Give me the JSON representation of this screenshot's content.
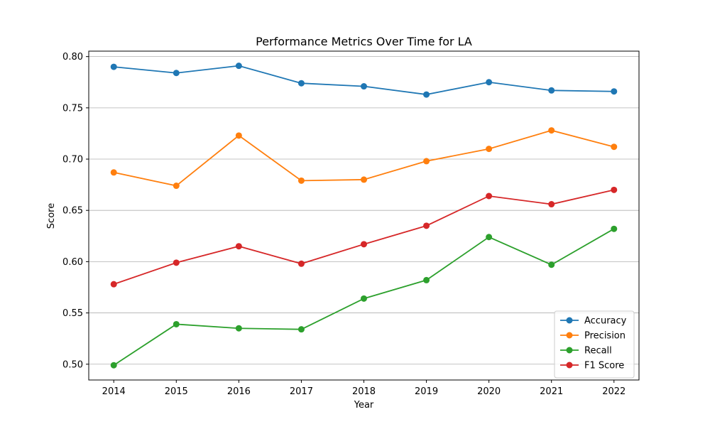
{
  "chart_data": {
    "type": "line",
    "title": "Performance Metrics Over Time for LA",
    "xlabel": "Year",
    "ylabel": "Score",
    "x": [
      2014,
      2015,
      2016,
      2017,
      2018,
      2019,
      2020,
      2021,
      2022
    ],
    "x_tick_labels": [
      "2014",
      "2015",
      "2016",
      "2017",
      "2018",
      "2019",
      "2020",
      "2021",
      "2022"
    ],
    "y_ticks": [
      0.5,
      0.55,
      0.6,
      0.65,
      0.7,
      0.75,
      0.8
    ],
    "y_tick_labels": [
      "0.50",
      "0.55",
      "0.60",
      "0.65",
      "0.70",
      "0.75",
      "0.80"
    ],
    "ylim": [
      0.4846,
      0.8053
    ],
    "grid": "y-axis major gridlines",
    "legend_position": "lower right",
    "series": [
      {
        "name": "Accuracy",
        "color": "#1f77b4",
        "values": [
          0.79,
          0.784,
          0.791,
          0.774,
          0.771,
          0.763,
          0.775,
          0.767,
          0.766
        ]
      },
      {
        "name": "Precision",
        "color": "#ff7f0e",
        "values": [
          0.687,
          0.674,
          0.723,
          0.679,
          0.68,
          0.698,
          0.71,
          0.728,
          0.712
        ]
      },
      {
        "name": "Recall",
        "color": "#2ca02c",
        "values": [
          0.499,
          0.539,
          0.535,
          0.534,
          0.564,
          0.582,
          0.624,
          0.597,
          0.632
        ]
      },
      {
        "name": "F1 Score",
        "color": "#d62728",
        "values": [
          0.578,
          0.599,
          0.615,
          0.598,
          0.617,
          0.635,
          0.664,
          0.656,
          0.67
        ]
      }
    ]
  }
}
